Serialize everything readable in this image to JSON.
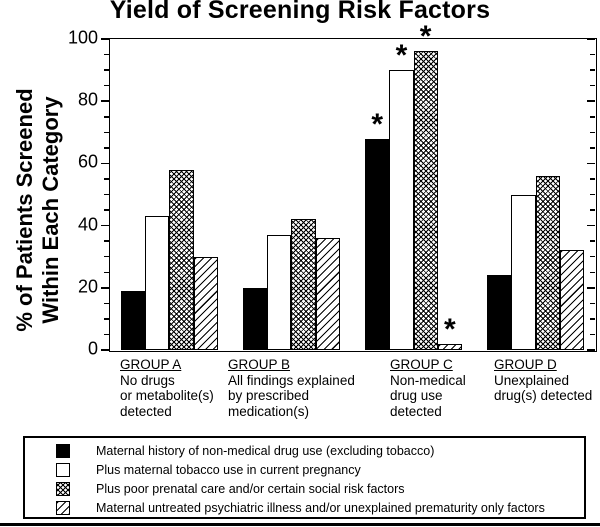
{
  "chart_data": {
    "type": "bar",
    "title": "Yield of Screening Risk Factors",
    "ylabel_lines": [
      "% of Patients Screened",
      "Within Each Category"
    ],
    "xlabel": "",
    "ylim": [
      0,
      100
    ],
    "ytick_interval_major": 20,
    "ytick_interval_minor": 5,
    "ytick_labels": [
      "0",
      "20",
      "40",
      "60",
      "80",
      "100"
    ],
    "grid": false,
    "legend_position": "bottom-box",
    "significance_symbol": "*",
    "categories": [
      {
        "name": "GROUP A",
        "description_lines": [
          "No drugs",
          "or metabolite(s)",
          "detected"
        ]
      },
      {
        "name": "GROUP B",
        "description_lines": [
          "All findings explained",
          "by prescribed",
          "medication(s)"
        ]
      },
      {
        "name": "GROUP C",
        "description_lines": [
          "Non-medical",
          "drug use",
          "detected"
        ]
      },
      {
        "name": "GROUP D",
        "description_lines": [
          "Unexplained",
          "drug(s) detected"
        ]
      }
    ],
    "series": [
      {
        "name": "Maternal history of non-medical drug use (excluding tobacco)",
        "pattern": "solid-black",
        "values": [
          19,
          20,
          68,
          24
        ],
        "significant": [
          false,
          false,
          true,
          false
        ]
      },
      {
        "name": "Plus maternal tobacco use in current pregnancy",
        "pattern": "white",
        "values": [
          43,
          37,
          90,
          50
        ],
        "significant": [
          false,
          false,
          true,
          false
        ]
      },
      {
        "name": "Plus poor prenatal care and/or certain social risk factors",
        "pattern": "crosshatch",
        "values": [
          58,
          42,
          96,
          56
        ],
        "significant": [
          false,
          false,
          true,
          false
        ]
      },
      {
        "name": "Maternal untreated psychiatric illness and/or unexplained prematurity only factors",
        "pattern": "diagonal-hatch",
        "values": [
          30,
          36,
          2,
          32
        ],
        "significant": [
          false,
          false,
          true,
          false
        ]
      }
    ],
    "colors": {
      "background": "#ffffff",
      "axis": "#000000",
      "bar_border": "#000000",
      "bar_fill_black": "#000000",
      "bar_fill_white": "#ffffff"
    }
  }
}
